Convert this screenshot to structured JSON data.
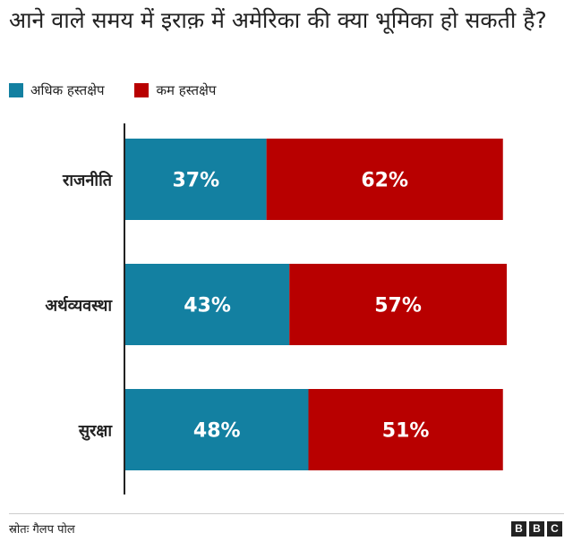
{
  "header": {
    "title": "आने वाले समय में इराक़ में अमेरिका की क्या भूमिका हो सकती है?"
  },
  "legend": {
    "items": [
      {
        "label": "अधिक हस्तक्षेप",
        "color": "#1380A1"
      },
      {
        "label": "कम हस्तक्षेप",
        "color": "#B80000"
      }
    ]
  },
  "chart_data": {
    "type": "bar",
    "orientation": "horizontal",
    "stacked": true,
    "categories": [
      "राजनीति",
      "अर्थव्यवस्था",
      "सुरक्षा"
    ],
    "series": [
      {
        "name": "अधिक हस्तक्षेप",
        "values": [
          37,
          43,
          48
        ],
        "labels": [
          "37%",
          "43%",
          "48%"
        ],
        "color": "#1380A1"
      },
      {
        "name": "कम हस्तक्षेप",
        "values": [
          62,
          57,
          51
        ],
        "labels": [
          "62%",
          "57%",
          "51%"
        ],
        "color": "#B80000"
      }
    ],
    "xlim": [
      0,
      100
    ],
    "grid": false,
    "legend_position": "top-left"
  },
  "footer": {
    "source": "स्रोतः गैलप पोल",
    "brand_letters": [
      "B",
      "B",
      "C"
    ]
  }
}
